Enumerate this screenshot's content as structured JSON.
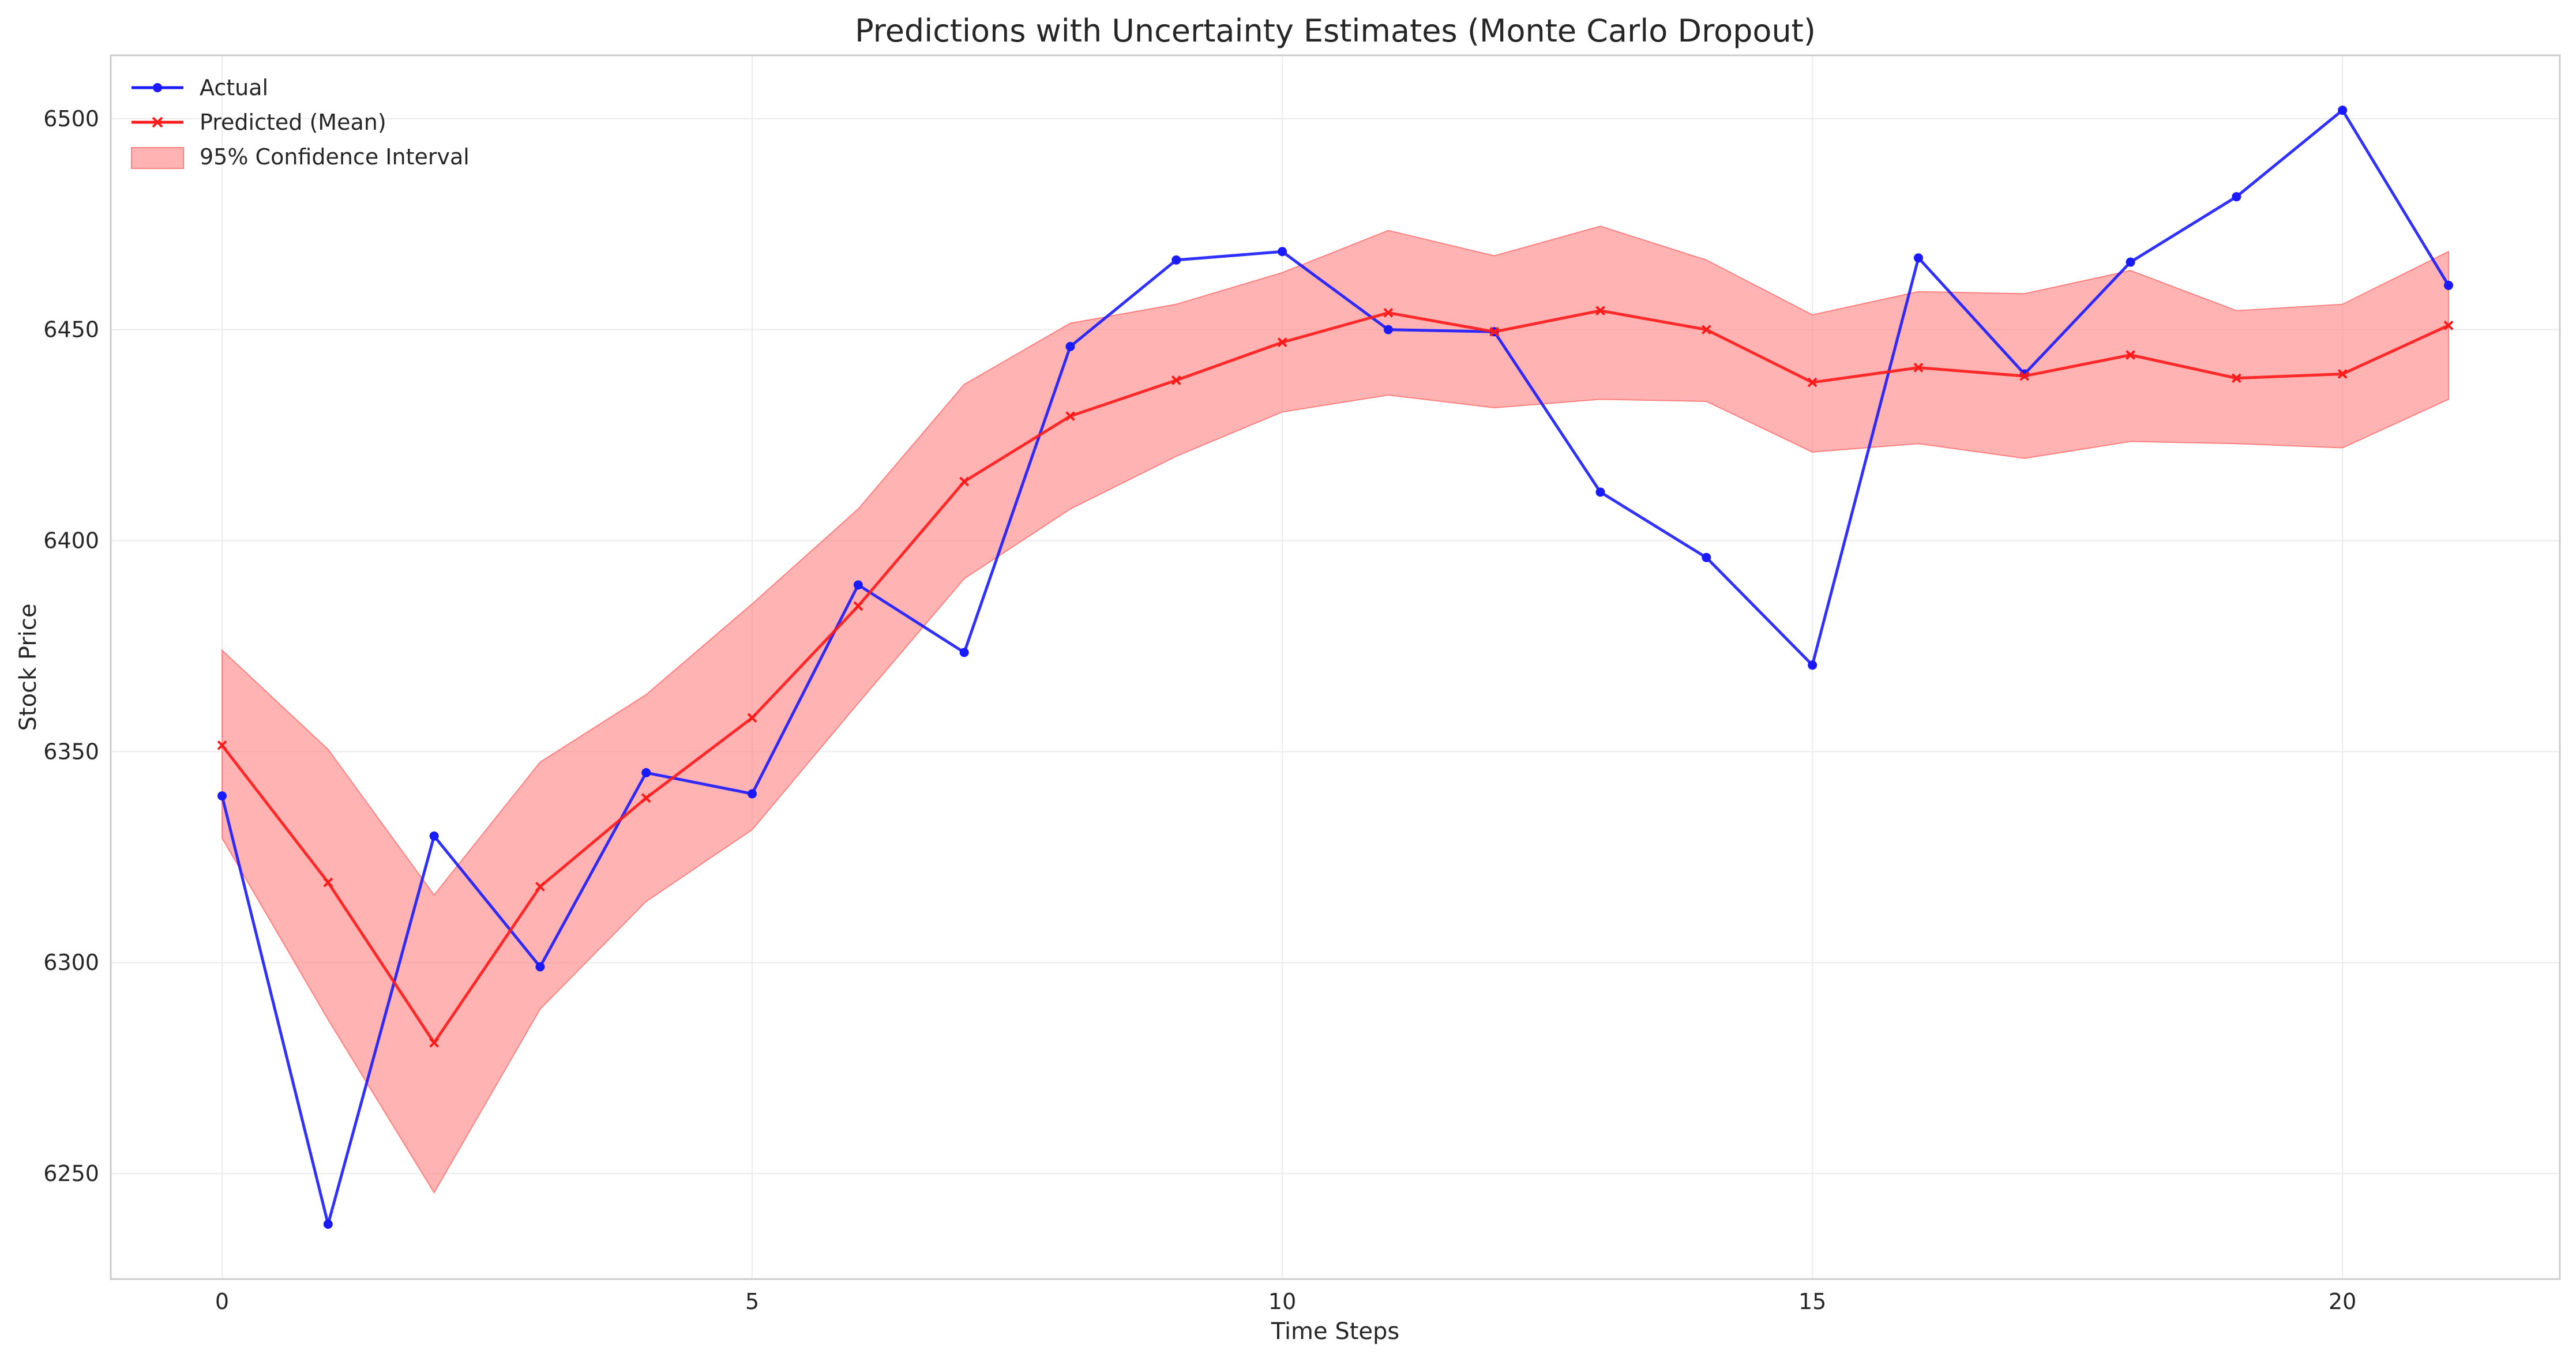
{
  "chart_data": {
    "type": "line",
    "title": "Predictions with Uncertainty Estimates (Monte Carlo Dropout)",
    "xlabel": "Time Steps",
    "ylabel": "Stock Price",
    "xlim": [
      -1.05,
      22.05
    ],
    "ylim": [
      6225,
      6515
    ],
    "xticks": [
      0,
      5,
      10,
      15,
      20
    ],
    "yticks": [
      6250,
      6300,
      6350,
      6400,
      6450,
      6500
    ],
    "grid": true,
    "legend_position": "top-left",
    "x": [
      0,
      1,
      2,
      3,
      4,
      5,
      6,
      7,
      8,
      9,
      10,
      11,
      12,
      13,
      14,
      15,
      16,
      17,
      18,
      19,
      20,
      21
    ],
    "series": [
      {
        "name": "Actual",
        "color": "#1a1aff",
        "marker": "circle",
        "values": [
          6339.5,
          6238.0,
          6330.0,
          6299.0,
          6345.0,
          6340.0,
          6389.5,
          6373.5,
          6446.0,
          6466.5,
          6468.5,
          6450.0,
          6449.5,
          6411.5,
          6396.0,
          6370.5,
          6467.0,
          6439.5,
          6466.0,
          6481.5,
          6502.0,
          6460.5
        ]
      },
      {
        "name": "Predicted (Mean)",
        "color": "#ff1a1a",
        "marker": "x",
        "values": [
          6351.5,
          6319.0,
          6281.0,
          6318.0,
          6339.0,
          6358.0,
          6384.5,
          6414.0,
          6429.5,
          6438.0,
          6447.0,
          6454.0,
          6449.5,
          6454.5,
          6450.0,
          6437.5,
          6441.0,
          6439.0,
          6444.0,
          6438.5,
          6439.5,
          6451.0
        ]
      }
    ],
    "confidence_interval": {
      "name": "95% Confidence Interval",
      "color": "#ff8080",
      "upper": [
        6374.0,
        6350.5,
        6316.0,
        6347.5,
        6363.5,
        6385.0,
        6407.5,
        6437.0,
        6451.5,
        6456.0,
        6463.5,
        6473.5,
        6467.5,
        6474.5,
        6466.5,
        6453.5,
        6459.0,
        6458.5,
        6464.0,
        6454.5,
        6456.0,
        6468.5
      ],
      "lower": [
        6329.5,
        6286.5,
        6245.5,
        6289.0,
        6314.5,
        6331.5,
        6361.5,
        6391.0,
        6407.5,
        6420.0,
        6430.5,
        6434.5,
        6431.5,
        6433.5,
        6433.0,
        6421.0,
        6423.0,
        6419.5,
        6423.5,
        6423.0,
        6422.0,
        6433.5
      ]
    }
  }
}
